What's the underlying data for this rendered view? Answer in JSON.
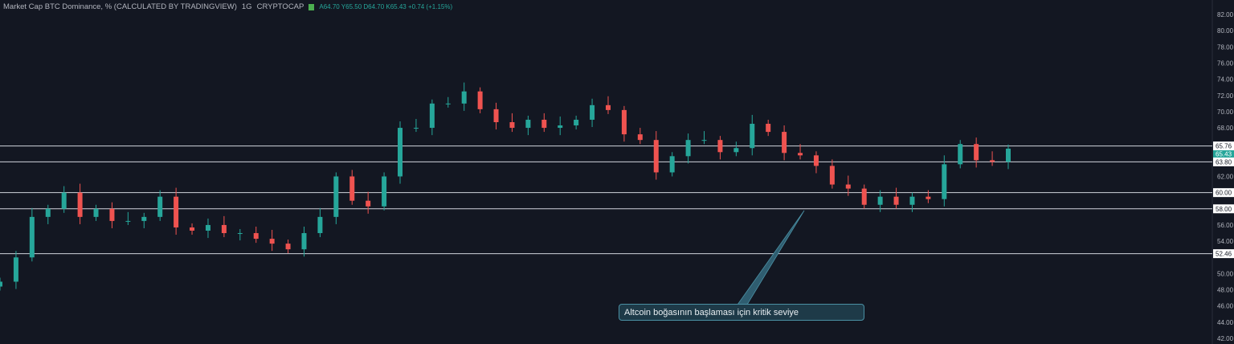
{
  "header": {
    "symbol_title": "Market Cap BTC Dominance, % (CALCULATED BY TRADINGVIEW)",
    "interval": "1G",
    "exchange": "CRYPTOCAP",
    "ohlc": "A64.70 Y65.50 D64.70 K65.43 +0.74 (+1.15%)"
  },
  "colors": {
    "background": "#131722",
    "up": "#26a69a",
    "down": "#ef5350",
    "level_line": "#d1d4dc",
    "last_price": "#26a69a"
  },
  "annotation": {
    "text": "Altcoin boğasının başlaması için kritik seviye"
  },
  "chart_data": {
    "type": "candlestick",
    "ylim": [
      42,
      82
    ],
    "y_ticks": [
      "42.00",
      "44.00",
      "46.00",
      "48.00",
      "50.00",
      "54.00",
      "56.00",
      "62.00",
      "68.00",
      "70.00",
      "72.00",
      "74.00",
      "76.00",
      "78.00",
      "80.00",
      "82.00"
    ],
    "grid": false,
    "closes": [
      49,
      52,
      57,
      58,
      60,
      57,
      58,
      56.5,
      56.5,
      57,
      59.5,
      55.7,
      55.3,
      56,
      55,
      55,
      54.3,
      53.7,
      53,
      55,
      57,
      62,
      59,
      58.3,
      62,
      68,
      68,
      71,
      71,
      72.5,
      70.3,
      68.7,
      68,
      69,
      68,
      68.3,
      69,
      70.8,
      70.2,
      67.2,
      66.5,
      62.5,
      64.5,
      66.5,
      66.5,
      65,
      65.5,
      68.5,
      67.5,
      64.9,
      64.6,
      63.3,
      61,
      60.5,
      58.5,
      59.5,
      58.5,
      59.5,
      59.2,
      63.5,
      66,
      64,
      63.8,
      65.43
    ],
    "horizontal_levels": [
      "65.76",
      "63.80",
      "60.00",
      "58.00",
      "52.46"
    ],
    "last_price": "65.43"
  }
}
